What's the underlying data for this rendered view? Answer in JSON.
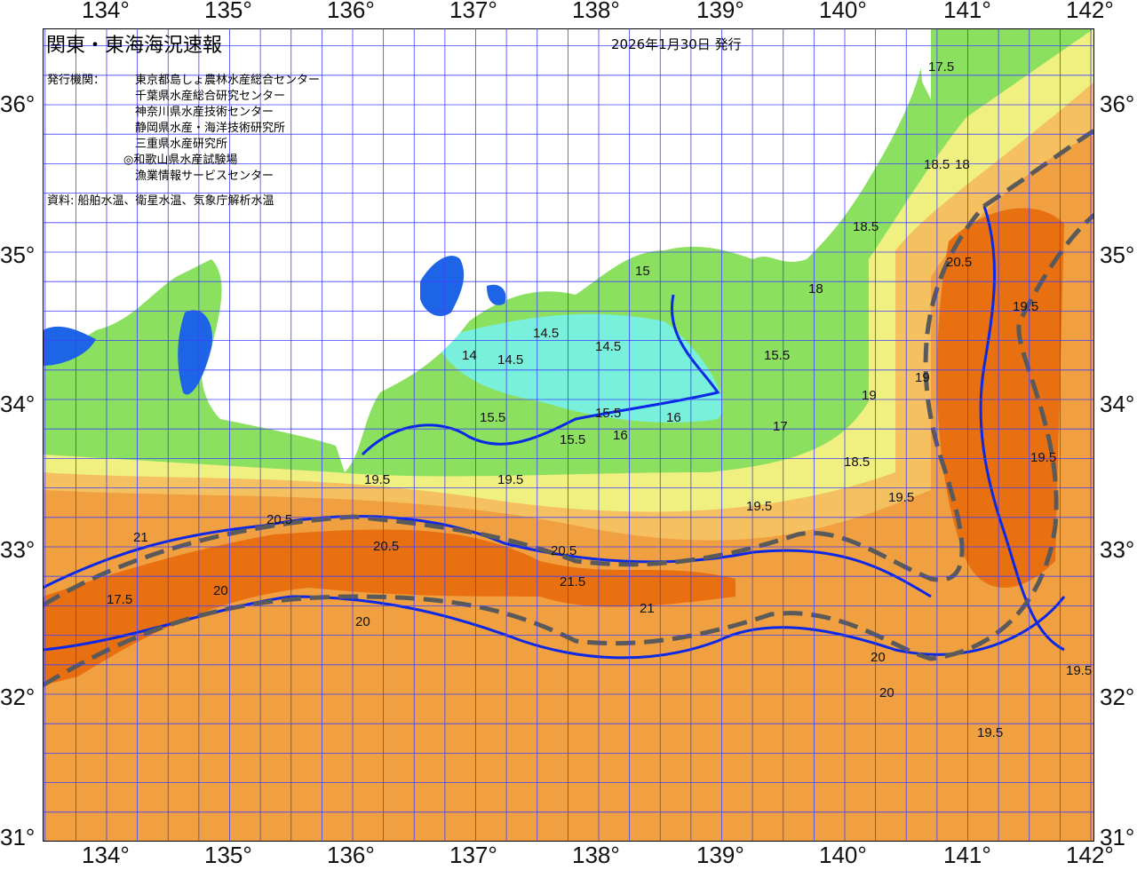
{
  "header": {
    "title": "関東・東海海況速報",
    "date": "2026年1月30日 発行",
    "issuer_label": "発行機関：",
    "issuers": [
      "東京都島しょ農林水産総合センター",
      "千葉県水産総合研究センター",
      "神奈川県水産技術センター",
      "静岡県水産・海洋技術研究所",
      "三重県水産研究所",
      "◎和歌山県水産試験場",
      "漁業情報サービスセンター"
    ],
    "source": "資料: 船舶水温、衛星水温、気象庁解析水温"
  },
  "axes": {
    "longitude_ticks": [
      "134°",
      "135°",
      "136°",
      "137°",
      "138°",
      "139°",
      "140°",
      "141°",
      "142°"
    ],
    "latitude_ticks": [
      "36°",
      "35°",
      "34°",
      "33°",
      "32°",
      "31°"
    ]
  },
  "map": {
    "type": "sea surface temperature contour map",
    "colors": {
      "land": "#ffffff",
      "cold": "#1e64e6",
      "cool": "#78f0dc",
      "mild": "#8ce060",
      "warm_yellow": "#f0f080",
      "warm": "#f0a040",
      "hot": "#e87010",
      "isotherm_bold": "#0a28e6",
      "kuroshio_axis": "#5a5a5a"
    },
    "contour_labels": [
      "14",
      "14.5",
      "14.5",
      "14.5",
      "15",
      "15.5",
      "15.5",
      "15.5",
      "15.5",
      "16",
      "16",
      "17",
      "17.5",
      "18",
      "18",
      "18.5",
      "18.5",
      "19",
      "19",
      "19.5",
      "19.5",
      "19.5",
      "19.5",
      "19.5",
      "20",
      "20",
      "20",
      "20.5",
      "20.5",
      "20.5",
      "20.5",
      "21",
      "21",
      "21.5",
      "17.5",
      "18.5",
      "19.5",
      "20",
      "19.5",
      "19.5"
    ]
  }
}
